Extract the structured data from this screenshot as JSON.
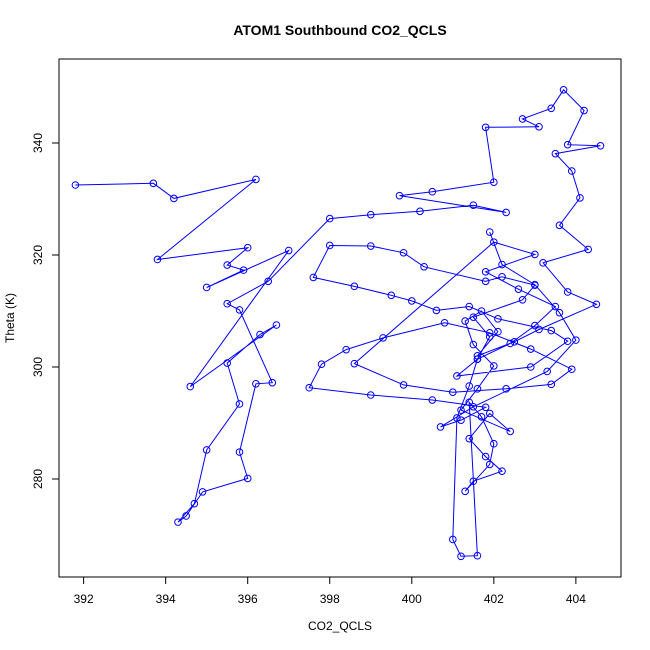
{
  "chart_data": {
    "type": "scatter",
    "title": "ATOM1 Southbound CO2_QCLS",
    "xlabel": "CO2_QCLS",
    "ylabel": "Theta (K)",
    "xlim": [
      391.4,
      405.1
    ],
    "ylim": [
      262.5,
      355.0
    ],
    "x_ticks": [
      392,
      394,
      396,
      398,
      400,
      402,
      404
    ],
    "y_ticks": [
      280,
      300,
      320,
      340
    ],
    "grid": false,
    "legend": "none",
    "colors": {
      "series": "#0000ff",
      "axis": "#000000",
      "background": "#ffffff"
    },
    "series": [
      {
        "mode": "lines+markers",
        "x": [
          391.8,
          393.7,
          394.2,
          396.2,
          393.8,
          396.0,
          395.5,
          395.9,
          395.0,
          397.0,
          394.6,
          396.7,
          396.3,
          395.5,
          395.8,
          395.0,
          394.7,
          394.3,
          394.5,
          394.9,
          396.0,
          395.8,
          396.2,
          396.6,
          395.8,
          395.5,
          396.5,
          398.0,
          399.0,
          400.2,
          401.5,
          402.3,
          399.7,
          400.5,
          402.0,
          401.8,
          403.1,
          402.7,
          403.4,
          403.7,
          404.2,
          403.8,
          404.6,
          403.5,
          403.9,
          404.1,
          403.6,
          404.3,
          403.2,
          403.8,
          404.5,
          403.1,
          402.5,
          401.6,
          402.1,
          401.7,
          401.3,
          401.5,
          402.0,
          401.6,
          401.2,
          402.4,
          401.9,
          401.4,
          401.8,
          402.2,
          401.5,
          401.3,
          401.9,
          402.0,
          401.7,
          401.4,
          401.6,
          401.2,
          401.0,
          401.1,
          401.4,
          401.6,
          401.9,
          401.5,
          402.7,
          403.0,
          402.2,
          401.8,
          400.3,
          399.8,
          399.0,
          398.0,
          397.6,
          398.6,
          399.5,
          400.0,
          400.6,
          401.4,
          402.1,
          403.4,
          403.8,
          402.9,
          401.1,
          401.6,
          402.4,
          403.0,
          403.5,
          402.6,
          401.8,
          403.0,
          402.0,
          398.6,
          399.8,
          401.0,
          402.3,
          403.4,
          403.9,
          402.9,
          401.9,
          400.8,
          399.3,
          398.4,
          397.8,
          397.5,
          399.0,
          400.5,
          401.8,
          401.2,
          400.7,
          401.5,
          403.3,
          404.0,
          403.6,
          403.0,
          402.2,
          401.9
        ],
        "y": [
          332.5,
          332.8,
          330.1,
          333.5,
          319.2,
          321.3,
          318.2,
          317.3,
          314.2,
          320.8,
          296.5,
          307.5,
          305.8,
          300.7,
          293.4,
          285.2,
          275.6,
          272.3,
          273.4,
          277.7,
          280.1,
          284.8,
          297.0,
          297.2,
          310.2,
          311.3,
          315.3,
          326.5,
          327.2,
          327.8,
          328.9,
          327.6,
          330.6,
          331.3,
          333.0,
          342.8,
          342.9,
          344.3,
          346.2,
          349.5,
          345.8,
          339.7,
          339.5,
          338.1,
          335.0,
          330.2,
          325.3,
          321.0,
          318.6,
          313.4,
          311.2,
          306.7,
          304.5,
          302.0,
          306.3,
          310.0,
          308.2,
          304.0,
          300.2,
          296.1,
          292.3,
          288.5,
          291.7,
          287.2,
          284.0,
          281.4,
          279.6,
          277.8,
          282.6,
          286.3,
          291.1,
          293.7,
          266.3,
          266.2,
          269.2,
          290.9,
          296.6,
          301.4,
          305.4,
          308.9,
          312.0,
          314.6,
          316.1,
          315.3,
          317.9,
          320.4,
          321.6,
          321.7,
          316.0,
          314.4,
          312.8,
          311.8,
          310.1,
          310.8,
          308.6,
          306.5,
          304.6,
          300.0,
          298.4,
          301.4,
          304.2,
          307.4,
          310.8,
          313.9,
          317.0,
          320.1,
          322.3,
          300.6,
          296.8,
          295.5,
          296.1,
          296.9,
          299.6,
          303.2,
          306.1,
          307.9,
          305.2,
          303.1,
          300.5,
          296.3,
          295.0,
          294.1,
          292.8,
          290.5,
          289.3,
          292.9,
          299.2,
          304.8,
          309.7,
          314.7,
          318.3,
          324.1
        ]
      }
    ]
  }
}
